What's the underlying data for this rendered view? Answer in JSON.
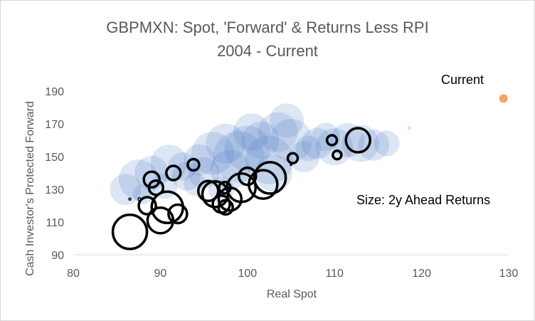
{
  "chart_data": {
    "type": "scatter",
    "title": [
      "GBPMXN: Spot, 'Forward' & Returns Less RPI",
      "2004 - Current"
    ],
    "xlabel": "Real Spot",
    "ylabel": "Cash Investor's Protected Forward",
    "xlim": [
      80,
      130
    ],
    "ylim": [
      90,
      200
    ],
    "xticks": [
      80,
      90,
      100,
      110,
      120,
      130
    ],
    "yticks": [
      90,
      110,
      130,
      150,
      170,
      190
    ],
    "grid": false,
    "colors": {
      "history_fill": "#4472c4",
      "future_ring": "#000000",
      "current": "#f4a46a",
      "axis_text": "#595959",
      "title_text": "#595959"
    },
    "annotations": {
      "current_label": "Current",
      "size_label": "Size: 2y Ahead Returns"
    },
    "current_point": {
      "x": 129.4,
      "y": 185.5
    },
    "history_series": [
      {
        "x": 86.0,
        "y": 130.0,
        "size": 22
      },
      {
        "x": 87.5,
        "y": 136.0,
        "size": 28
      },
      {
        "x": 89.0,
        "y": 140.0,
        "size": 24
      },
      {
        "x": 91.0,
        "y": 146.0,
        "size": 26
      },
      {
        "x": 92.5,
        "y": 144.0,
        "size": 20
      },
      {
        "x": 94.5,
        "y": 148.0,
        "size": 22
      },
      {
        "x": 96.0,
        "y": 152.0,
        "size": 30
      },
      {
        "x": 97.5,
        "y": 158.0,
        "size": 28
      },
      {
        "x": 99.0,
        "y": 150.0,
        "size": 36
      },
      {
        "x": 100.0,
        "y": 155.0,
        "size": 32
      },
      {
        "x": 101.5,
        "y": 160.0,
        "size": 26
      },
      {
        "x": 102.5,
        "y": 148.0,
        "size": 34
      },
      {
        "x": 103.5,
        "y": 165.0,
        "size": 28
      },
      {
        "x": 104.5,
        "y": 172.0,
        "size": 24
      },
      {
        "x": 105.0,
        "y": 160.0,
        "size": 30
      },
      {
        "x": 103.0,
        "y": 140.0,
        "size": 26
      },
      {
        "x": 98.0,
        "y": 142.0,
        "size": 28
      },
      {
        "x": 95.0,
        "y": 140.0,
        "size": 22
      },
      {
        "x": 93.0,
        "y": 138.0,
        "size": 20
      },
      {
        "x": 90.5,
        "y": 132.0,
        "size": 18
      },
      {
        "x": 100.5,
        "y": 165.0,
        "size": 26
      },
      {
        "x": 106.5,
        "y": 150.0,
        "size": 22
      },
      {
        "x": 108.0,
        "y": 158.0,
        "size": 22
      },
      {
        "x": 110.0,
        "y": 156.0,
        "size": 26
      },
      {
        "x": 111.5,
        "y": 160.0,
        "size": 24
      },
      {
        "x": 113.0,
        "y": 158.0,
        "size": 26
      },
      {
        "x": 114.5,
        "y": 157.0,
        "size": 22
      },
      {
        "x": 116.0,
        "y": 158.0,
        "size": 18
      },
      {
        "x": 109.0,
        "y": 162.0,
        "size": 20
      },
      {
        "x": 107.0,
        "y": 155.0,
        "size": 18
      },
      {
        "x": 97.0,
        "y": 130.0,
        "size": 18
      },
      {
        "x": 94.0,
        "y": 133.0,
        "size": 16
      },
      {
        "x": 88.0,
        "y": 127.0,
        "size": 14
      },
      {
        "x": 118.6,
        "y": 167.5,
        "size": 3
      }
    ],
    "future_series": [
      {
        "x": 86.5,
        "y": 104.0,
        "size": 24
      },
      {
        "x": 88.5,
        "y": 120.0,
        "size": 12
      },
      {
        "x": 89.0,
        "y": 136.0,
        "size": 11
      },
      {
        "x": 89.5,
        "y": 131.0,
        "size": 10
      },
      {
        "x": 90.0,
        "y": 111.0,
        "size": 18
      },
      {
        "x": 90.8,
        "y": 119.0,
        "size": 22
      },
      {
        "x": 92.0,
        "y": 115.0,
        "size": 13
      },
      {
        "x": 91.5,
        "y": 140.0,
        "size": 10
      },
      {
        "x": 93.8,
        "y": 145.0,
        "size": 8
      },
      {
        "x": 95.5,
        "y": 129.0,
        "size": 14
      },
      {
        "x": 96.3,
        "y": 127.0,
        "size": 18
      },
      {
        "x": 97.0,
        "y": 121.0,
        "size": 12
      },
      {
        "x": 98.0,
        "y": 124.0,
        "size": 16
      },
      {
        "x": 97.4,
        "y": 131.0,
        "size": 8
      },
      {
        "x": 99.3,
        "y": 131.0,
        "size": 20
      },
      {
        "x": 100.0,
        "y": 138.0,
        "size": 12
      },
      {
        "x": 101.8,
        "y": 133.0,
        "size": 20
      },
      {
        "x": 102.6,
        "y": 137.0,
        "size": 22
      },
      {
        "x": 97.5,
        "y": 119.0,
        "size": 10
      },
      {
        "x": 105.2,
        "y": 149.0,
        "size": 7
      },
      {
        "x": 109.7,
        "y": 160.0,
        "size": 7
      },
      {
        "x": 110.3,
        "y": 151.0,
        "size": 6
      },
      {
        "x": 112.7,
        "y": 160.0,
        "size": 17
      },
      {
        "x": 87.6,
        "y": 124.0,
        "size": 2
      },
      {
        "x": 86.5,
        "y": 124.0,
        "size": 1.5
      },
      {
        "x": 105.0,
        "y": 145.0,
        "size": 1
      }
    ]
  }
}
